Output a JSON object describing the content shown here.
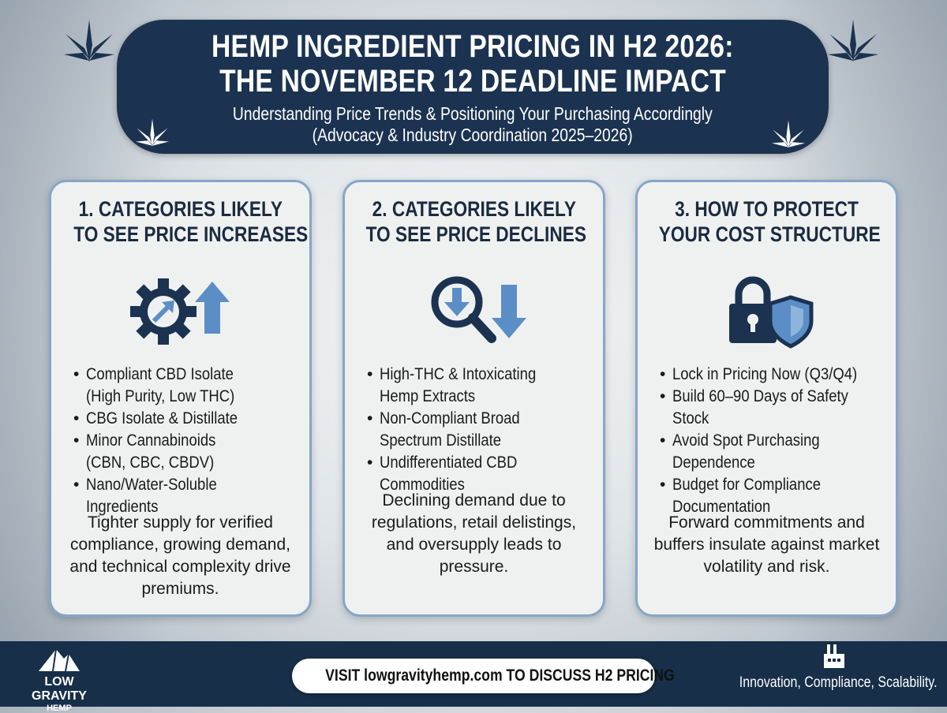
{
  "header": {
    "title_line1": "HEMP INGREDIENT PRICING IN H2 2026:",
    "title_line2": "THE NOVEMBER 12 DEADLINE IMPACT",
    "subtitle_line1": "Understanding Price Trends & Positioning Your Purchasing Accordingly",
    "subtitle_line2": "(Advocacy & Industry Coordination 2025–2026)"
  },
  "cards": [
    {
      "title_line1": "1. CATEGORIES LIKELY",
      "title_line2": "TO SEE PRICE INCREASES",
      "icon": "gear-arrow-up-icon",
      "bullets": [
        [
          "Compliant CBD Isolate",
          "(High Purity, Low THC)"
        ],
        [
          "CBG Isolate & Distillate"
        ],
        [
          "Minor Cannabinoids",
          "(CBN, CBC, CBDV)"
        ],
        [
          "Nano/Water-Soluble",
          "Ingredients"
        ]
      ],
      "note": "Tighter supply for verified compliance, growing demand, and technical complexity drive premiums."
    },
    {
      "title_line1": "2. CATEGORIES LIKELY",
      "title_line2": "TO SEE PRICE DECLINES",
      "icon": "magnifier-arrow-down-icon",
      "bullets": [
        [
          "High-THC & Intoxicating",
          "Hemp Extracts"
        ],
        [
          "Non-Compliant Broad",
          "Spectrum Distillate"
        ],
        [
          "Undifferentiated CBD",
          "Commodities"
        ]
      ],
      "note": "Declining demand due to regulations, retail delistings, and oversupply leads to pressure."
    },
    {
      "title_line1": "3. HOW TO PROTECT",
      "title_line2": "YOUR COST STRUCTURE",
      "icon": "lock-shield-icon",
      "bullets": [
        [
          "Lock in Pricing Now (Q3/Q4)"
        ],
        [
          "Build 60–90 Days of Safety",
          "Stock"
        ],
        [
          "Avoid Spot Purchasing",
          "Dependence"
        ],
        [
          "Budget for Compliance",
          "Documentation"
        ]
      ],
      "note": "Forward commitments and buffers insulate against market volatility and risk."
    }
  ],
  "footer": {
    "logo_line1": "LOW GRAVITY",
    "logo_line2": "HEMP",
    "cta": "VISIT lowgravityhemp.com TO DISCUSS H2 PRICING",
    "tagline": "Innovation, Compliance, Scalability."
  },
  "colors": {
    "navy": "#1b3350",
    "accent_blue": "#5b8ec6",
    "card_border": "#86a6c8"
  }
}
